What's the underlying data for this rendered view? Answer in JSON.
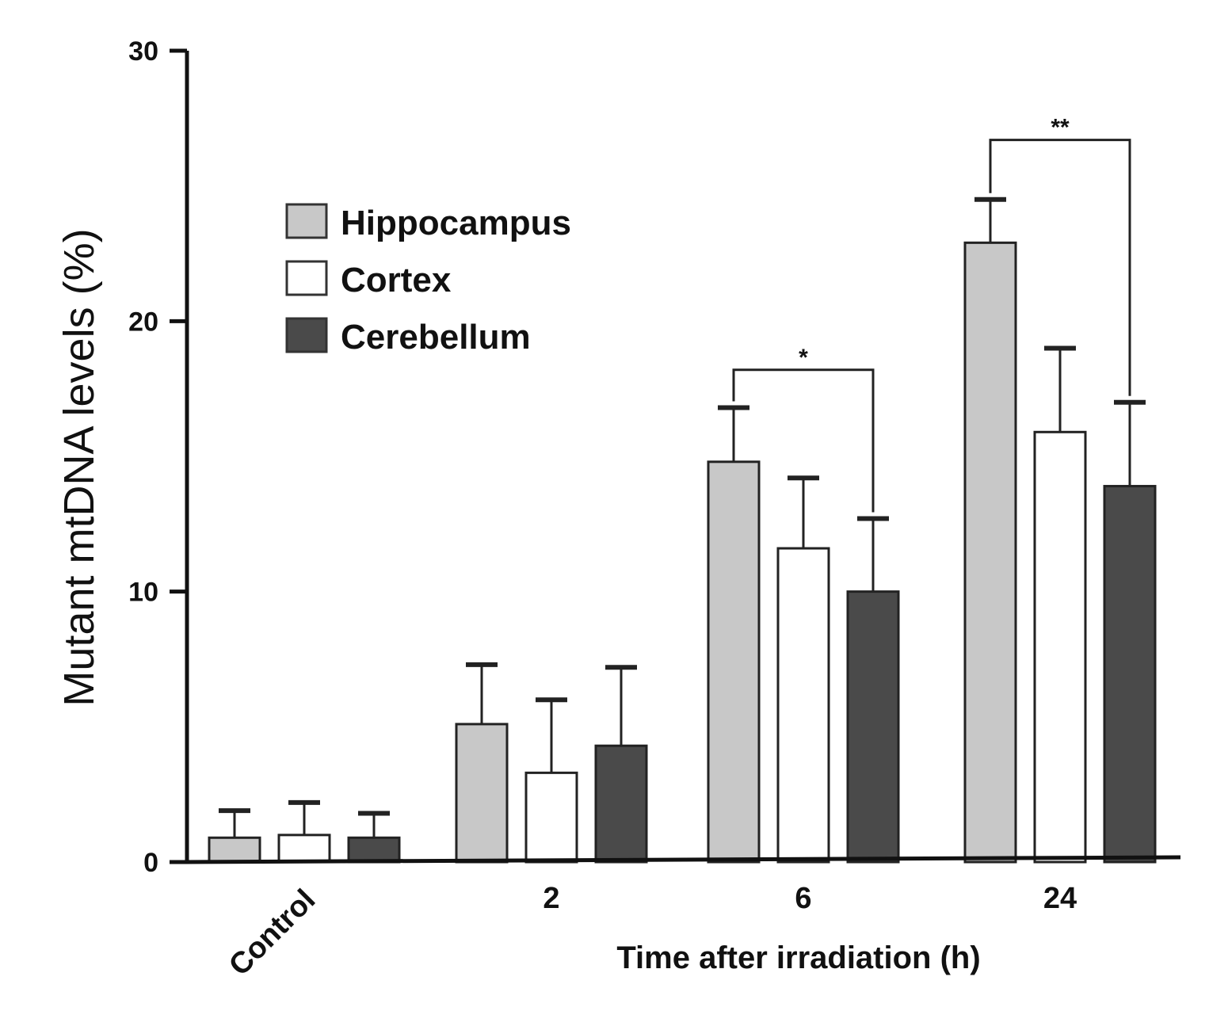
{
  "chart_data": {
    "type": "bar",
    "title": "",
    "xlabel": "Time after irradiation (h)",
    "ylabel": "Mutant mtDNA levels (%)",
    "ylim": [
      0,
      30
    ],
    "yticks": [
      0,
      10,
      20,
      30
    ],
    "categories": [
      "Control",
      "2",
      "6",
      "24"
    ],
    "series": [
      {
        "name": "Hippocampus",
        "color": "#c8c8c8",
        "values": [
          0.9,
          5.1,
          14.8,
          22.9
        ],
        "errors": [
          1.0,
          2.2,
          2.0,
          1.6
        ]
      },
      {
        "name": "Cortex",
        "color": "#ffffff",
        "values": [
          1.0,
          3.3,
          11.6,
          15.9
        ],
        "errors": [
          1.2,
          2.7,
          2.6,
          3.1
        ]
      },
      {
        "name": "Cerebellum",
        "color": "#4a4a4a",
        "values": [
          0.9,
          4.3,
          10.0,
          13.9
        ],
        "errors": [
          0.9,
          2.9,
          2.7,
          3.1
        ]
      }
    ],
    "legend_position": "top-left",
    "annotations": [
      {
        "text": "*",
        "category": "6",
        "from_series": "Hippocampus",
        "to_series": "Cerebellum",
        "level": 18.2
      },
      {
        "text": "**",
        "category": "24",
        "from_series": "Hippocampus",
        "to_series": "Cerebellum",
        "level": 26.7
      }
    ]
  }
}
